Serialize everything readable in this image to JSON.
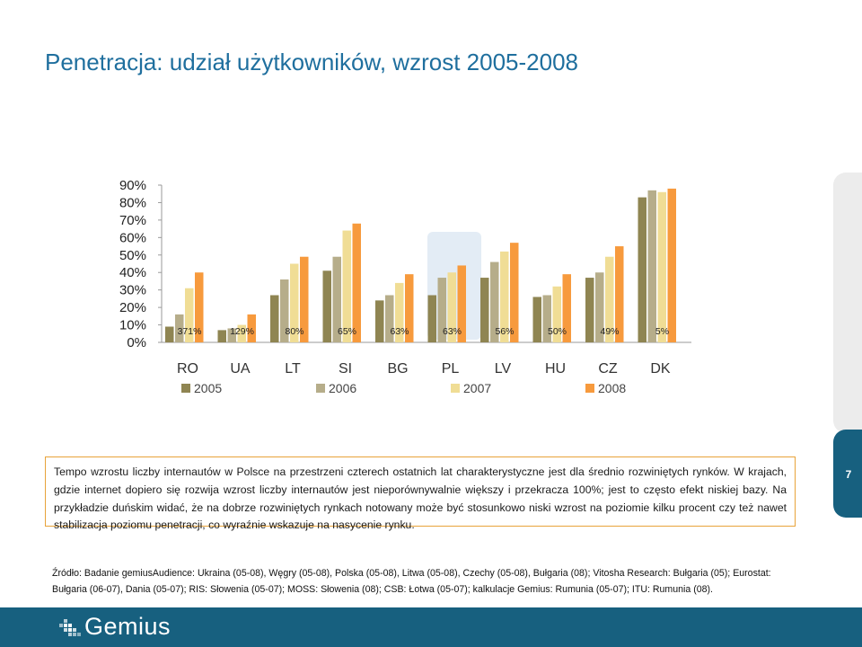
{
  "slide": {
    "title": "Penetracja: udział użytkowników, wzrost 2005-2008",
    "page_number": "7",
    "body_text_1": "Tempo wzrostu liczby internautów w Polsce na przestrzeni czterech ostatnich lat charakterystyczne jest dla średnio rozwiniętych rynków. W krajach, gdzie internet dopiero się rozwija wzrost liczby internautów jest nieporównywalnie większy i przekracza 100%; jest to często efekt niskiej bazy.",
    "body_text_2": "Na przykładzie duńskim widać, że na dobrze rozwiniętych rynkach notowany może być stosunkowo niski wzrost na poziomie kilku procent czy też nawet stabilizacja poziomu penetracji, co wyraźnie wskazuje na nasycenie rynku.",
    "source": "Źródło: Badanie gemiusAudience: Ukraina (05-08), Węgry (05-08), Polska (05-08), Litwa (05-08), Czechy (05-08), Bułgaria (08); Vitosha Research: Bułgaria (05); Eurostat: Bułgaria (06-07), Dania (05-07); RIS: Słowenia (05-07); MOSS: Słowenia (08); CSB: Łotwa (05-07); kalkulacje Gemius: Rumunia (05-07); ITU: Rumunia (08).",
    "logo_text": "Gemius"
  },
  "chart_data": {
    "type": "bar",
    "categories": [
      "RO",
      "UA",
      "LT",
      "SI",
      "BG",
      "PL",
      "LV",
      "HU",
      "CZ",
      "DK"
    ],
    "highlight_category": "PL",
    "growth_labels": [
      "371%",
      "129%",
      "80%",
      "65%",
      "63%",
      "63%",
      "56%",
      "50%",
      "49%",
      "5%"
    ],
    "y_ticks": [
      "0%",
      "10%",
      "20%",
      "30%",
      "40%",
      "50%",
      "60%",
      "70%",
      "80%",
      "90%"
    ],
    "ylim": [
      0,
      90
    ],
    "series": [
      {
        "name": "2005",
        "color": "#8f8552",
        "values": [
          9,
          7,
          27,
          41,
          24,
          27,
          37,
          26,
          37,
          83
        ]
      },
      {
        "name": "2006",
        "color": "#b6ad8a",
        "values": [
          16,
          8,
          36,
          49,
          27,
          37,
          46,
          27,
          40,
          87
        ]
      },
      {
        "name": "2007",
        "color": "#f0dd95",
        "values": [
          31,
          10,
          45,
          64,
          34,
          40,
          52,
          32,
          49,
          86
        ]
      },
      {
        "name": "2008",
        "color": "#f79a3d",
        "values": [
          40,
          16,
          49,
          68,
          39,
          44,
          57,
          39,
          55,
          88
        ]
      }
    ],
    "legend_position": "bottom",
    "grid": false
  }
}
